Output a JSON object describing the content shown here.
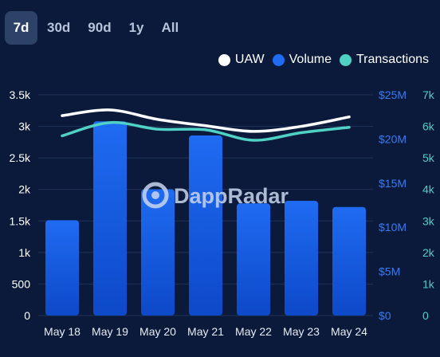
{
  "range_tabs": [
    {
      "label": "7d",
      "active": true
    },
    {
      "label": "30d",
      "active": false
    },
    {
      "label": "90d",
      "active": false
    },
    {
      "label": "1y",
      "active": false
    },
    {
      "label": "All",
      "active": false
    }
  ],
  "watermark": "DappRadar",
  "colors": {
    "background": "#0b1a3a",
    "uaw": "#ffffff",
    "volume": "#1f6bf2",
    "transactions": "#4fd1c5",
    "left_axis": "#ffffff",
    "right1_axis": "#3a7bf0",
    "right2_axis": "#4fd1c5"
  },
  "chart_data": {
    "type": "bar",
    "categories": [
      "May 18",
      "May 19",
      "May 20",
      "May 21",
      "May 22",
      "May 23",
      "May 24"
    ],
    "series": [
      {
        "name": "Volume",
        "type": "bar",
        "axis": "right1",
        "values": [
          10.8,
          22.0,
          14.3,
          20.4,
          12.7,
          13.0,
          12.3
        ]
      },
      {
        "name": "UAW",
        "type": "line",
        "axis": "left",
        "values": [
          3170,
          3260,
          3110,
          3010,
          2920,
          3000,
          3150
        ]
      },
      {
        "name": "Transactions",
        "type": "line",
        "axis": "right2",
        "values": [
          5700,
          6120,
          5910,
          5890,
          5560,
          5800,
          5970
        ]
      }
    ],
    "axes": {
      "left": {
        "ylim": [
          0,
          3500
        ],
        "ticks": [
          0,
          500,
          1000,
          1500,
          2000,
          2500,
          3000,
          3500
        ],
        "tick_labels": [
          "0",
          "500",
          "1k",
          "1.5k",
          "2k",
          "2.5k",
          "3k",
          "3.5k"
        ]
      },
      "right1": {
        "ylim": [
          0,
          25
        ],
        "unit": "$M",
        "ticks": [
          0,
          5,
          10,
          15,
          20,
          25
        ],
        "tick_labels": [
          "$0",
          "$5M",
          "$10M",
          "$15M",
          "$20M",
          "$25M"
        ]
      },
      "right2": {
        "ylim": [
          0,
          7000
        ],
        "ticks": [
          0,
          1000,
          2000,
          3000,
          4000,
          5000,
          6000,
          7000
        ],
        "tick_labels": [
          "0",
          "1k",
          "2k",
          "3k",
          "4k",
          "5k",
          "6k",
          "7k"
        ]
      }
    },
    "legend": {
      "placement": "top-right",
      "entries": [
        "UAW",
        "Volume",
        "Transactions"
      ]
    },
    "grid": true
  }
}
